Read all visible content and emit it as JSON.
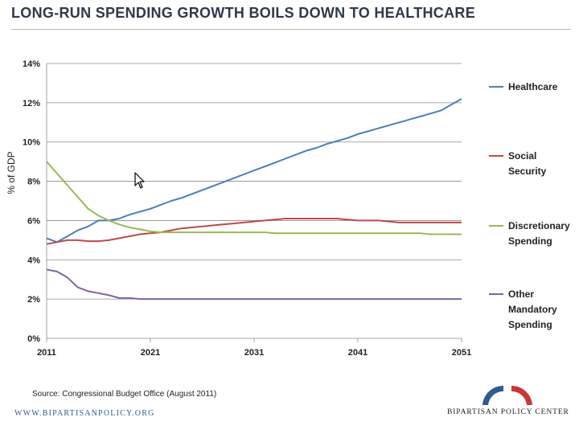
{
  "header": {
    "title": "LONG-RUN SPENDING GROWTH BOILS DOWN TO HEALTHCARE"
  },
  "footer": {
    "source": "Source: Congressional Budget Office (August 2011)",
    "website": "WWW.BIPARTISANPOLICY.ORG",
    "org_name": "BIPARTISAN POLICY CENTER"
  },
  "chart_data": {
    "type": "line",
    "title": "",
    "xlabel": "",
    "ylabel": "% of GDP",
    "xlim": [
      2011,
      2051
    ],
    "ylim": [
      0,
      14
    ],
    "xticks": [
      "2011",
      "2021",
      "2031",
      "2041",
      "2051"
    ],
    "yticks": [
      "0%",
      "2%",
      "4%",
      "6%",
      "8%",
      "10%",
      "12%",
      "14%"
    ],
    "grid": "horizontal",
    "legend_position": "right",
    "x": [
      2011,
      2012,
      2013,
      2014,
      2015,
      2016,
      2017,
      2018,
      2019,
      2020,
      2021,
      2022,
      2023,
      2024,
      2025,
      2026,
      2027,
      2028,
      2029,
      2030,
      2031,
      2032,
      2033,
      2034,
      2035,
      2036,
      2037,
      2038,
      2039,
      2040,
      2041,
      2042,
      2043,
      2044,
      2045,
      2046,
      2047,
      2048,
      2049,
      2050,
      2051
    ],
    "series": [
      {
        "name": "Healthcare",
        "legend_lines": [
          "Healthcare"
        ],
        "color": "#4a7ebb",
        "values": [
          5.1,
          4.9,
          5.2,
          5.5,
          5.7,
          6.0,
          6.0,
          6.1,
          6.3,
          6.45,
          6.6,
          6.8,
          7.0,
          7.15,
          7.35,
          7.55,
          7.75,
          7.95,
          8.15,
          8.35,
          8.55,
          8.75,
          8.95,
          9.15,
          9.35,
          9.55,
          9.7,
          9.9,
          10.05,
          10.2,
          10.4,
          10.55,
          10.7,
          10.85,
          11.0,
          11.15,
          11.3,
          11.45,
          11.6,
          11.9,
          12.2
        ]
      },
      {
        "name": "Social Security",
        "legend_lines": [
          "Social",
          "Security"
        ],
        "color": "#be4b48",
        "values": [
          4.8,
          4.9,
          5.0,
          5.0,
          4.95,
          4.95,
          5.0,
          5.1,
          5.2,
          5.3,
          5.35,
          5.4,
          5.5,
          5.6,
          5.65,
          5.7,
          5.75,
          5.8,
          5.85,
          5.9,
          5.95,
          6.0,
          6.05,
          6.1,
          6.1,
          6.1,
          6.1,
          6.1,
          6.1,
          6.05,
          6.0,
          6.0,
          6.0,
          5.95,
          5.9,
          5.9,
          5.9,
          5.9,
          5.9,
          5.9,
          5.9
        ]
      },
      {
        "name": "Discretionary Spending",
        "legend_lines": [
          "Discretionary",
          "Spending"
        ],
        "color": "#98b954",
        "values": [
          9.0,
          8.4,
          7.8,
          7.2,
          6.6,
          6.25,
          6.0,
          5.8,
          5.65,
          5.55,
          5.45,
          5.4,
          5.4,
          5.4,
          5.4,
          5.4,
          5.4,
          5.4,
          5.4,
          5.4,
          5.4,
          5.4,
          5.35,
          5.35,
          5.35,
          5.35,
          5.35,
          5.35,
          5.35,
          5.35,
          5.35,
          5.35,
          5.35,
          5.35,
          5.35,
          5.35,
          5.35,
          5.3,
          5.3,
          5.3,
          5.3
        ]
      },
      {
        "name": "Other Mandatory Spending",
        "legend_lines": [
          "Other",
          "Mandatory",
          "Spending"
        ],
        "color": "#7e64a1",
        "values": [
          3.5,
          3.4,
          3.1,
          2.6,
          2.4,
          2.3,
          2.2,
          2.05,
          2.05,
          2.0,
          2.0,
          2.0,
          2.0,
          2.0,
          2.0,
          2.0,
          2.0,
          2.0,
          2.0,
          2.0,
          2.0,
          2.0,
          2.0,
          2.0,
          2.0,
          2.0,
          2.0,
          2.0,
          2.0,
          2.0,
          2.0,
          2.0,
          2.0,
          2.0,
          2.0,
          2.0,
          2.0,
          2.0,
          2.0,
          2.0,
          2.0
        ]
      }
    ]
  }
}
